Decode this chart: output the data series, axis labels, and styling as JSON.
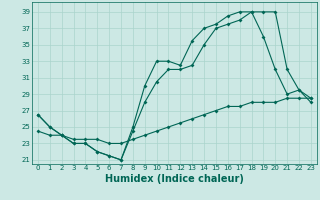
{
  "bg_color": "#cce8e4",
  "grid_color": "#aad4cc",
  "line_color": "#006655",
  "line_width": 0.8,
  "marker": "D",
  "marker_size": 2.0,
  "xlabel": "Humidex (Indice chaleur)",
  "xlabel_fontsize": 7,
  "yticks": [
    21,
    23,
    25,
    27,
    29,
    31,
    33,
    35,
    37,
    39
  ],
  "xticks": [
    0,
    1,
    2,
    3,
    4,
    5,
    6,
    7,
    8,
    9,
    10,
    11,
    12,
    13,
    14,
    15,
    16,
    17,
    18,
    19,
    20,
    21,
    22,
    23
  ],
  "xlim": [
    -0.5,
    23.5
  ],
  "ylim": [
    20.5,
    40.2
  ],
  "series1_x": [
    0,
    1,
    2,
    3,
    4,
    5,
    6,
    7,
    8,
    9,
    10,
    11,
    12,
    13,
    14,
    15,
    16,
    17,
    18,
    19,
    20,
    21,
    22,
    23
  ],
  "series1_y": [
    26.5,
    25,
    24,
    23,
    23,
    22,
    21.5,
    21,
    24.5,
    28,
    30.5,
    32,
    32,
    32.5,
    35,
    37,
    37.5,
    38,
    39,
    39,
    39,
    32,
    29.5,
    28
  ],
  "series2_x": [
    0,
    1,
    2,
    3,
    4,
    5,
    6,
    7,
    8,
    9,
    10,
    11,
    12,
    13,
    14,
    15,
    16,
    17,
    18,
    19,
    20,
    21,
    22,
    23
  ],
  "series2_y": [
    26.5,
    25,
    24,
    23,
    23,
    22,
    21.5,
    21,
    25,
    30,
    33,
    33,
    32.5,
    35.5,
    37,
    37.5,
    38.5,
    39,
    39,
    36,
    32,
    29,
    29.5,
    28.5
  ],
  "series3_x": [
    0,
    1,
    2,
    3,
    4,
    5,
    6,
    7,
    8,
    9,
    10,
    11,
    12,
    13,
    14,
    15,
    16,
    17,
    18,
    19,
    20,
    21,
    22,
    23
  ],
  "series3_y": [
    24.5,
    24,
    24,
    23.5,
    23.5,
    23.5,
    23,
    23,
    23.5,
    24,
    24.5,
    25,
    25.5,
    26,
    26.5,
    27,
    27.5,
    27.5,
    28,
    28,
    28,
    28.5,
    28.5,
    28.5
  ]
}
